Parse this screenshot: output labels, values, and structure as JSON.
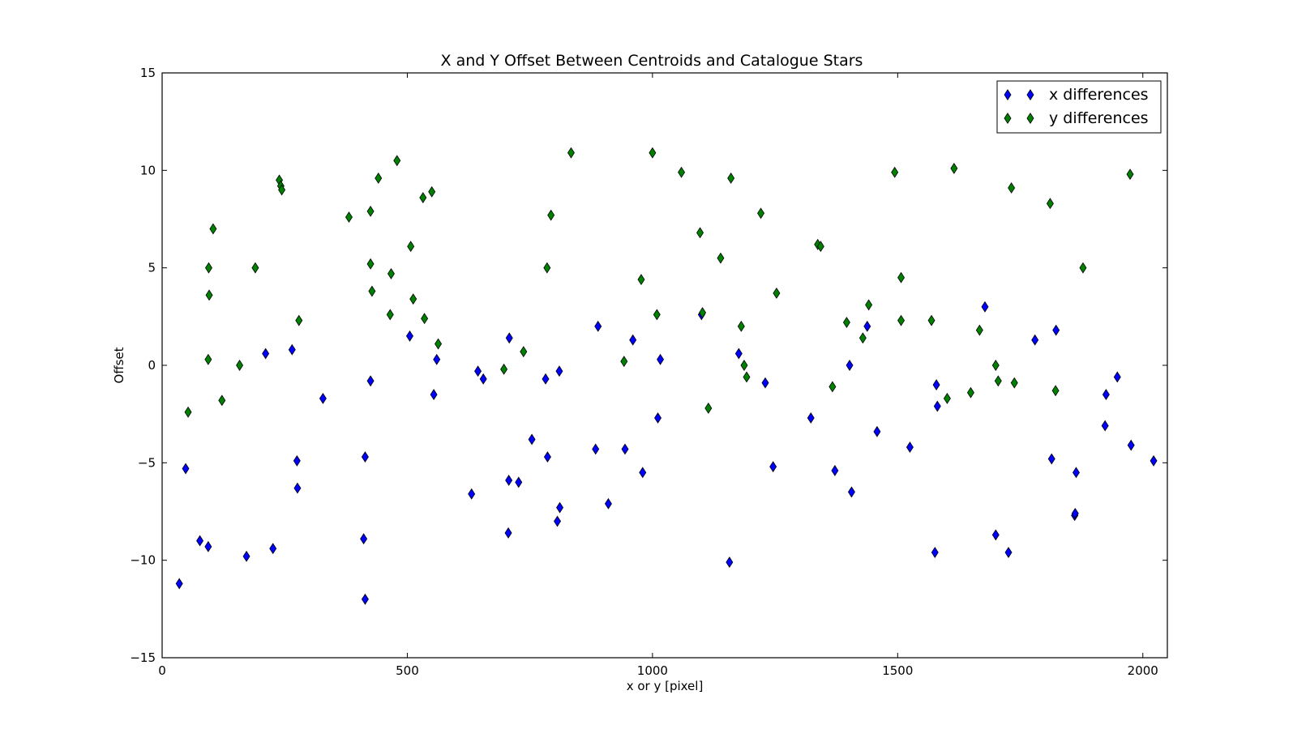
{
  "chart_data": {
    "type": "scatter",
    "title": "X and Y Offset Between Centroids and Catalogue Stars",
    "xlabel": "x or y [pixel]",
    "ylabel": "Offset",
    "xlim": [
      0,
      2050
    ],
    "ylim": [
      -15,
      15
    ],
    "xticks": [
      0,
      500,
      1000,
      1500,
      2000
    ],
    "yticks": [
      -15,
      -10,
      -5,
      0,
      5,
      10,
      15
    ],
    "xtick_labels": [
      "0",
      "500",
      "1000",
      "1500",
      "2000"
    ],
    "ytick_labels": [
      "−15",
      "−10",
      "−5",
      "0",
      "5",
      "10",
      "15"
    ],
    "grid": false,
    "legend": "top-right",
    "marker": "diamond",
    "series": [
      {
        "name": "x differences",
        "color": "#0000ff",
        "points": [
          [
            35,
            -11.2
          ],
          [
            48,
            -5.3
          ],
          [
            77,
            -9.0
          ],
          [
            94,
            -9.3
          ],
          [
            172,
            -9.8
          ],
          [
            211,
            0.6
          ],
          [
            226,
            -9.4
          ],
          [
            265,
            0.8
          ],
          [
            275,
            -4.9
          ],
          [
            276,
            -6.3
          ],
          [
            328,
            -1.7
          ],
          [
            411,
            -8.9
          ],
          [
            414,
            -4.7
          ],
          [
            414,
            -12.0
          ],
          [
            425,
            -0.8
          ],
          [
            505,
            1.5
          ],
          [
            554,
            -1.5
          ],
          [
            560,
            0.3
          ],
          [
            631,
            -6.6
          ],
          [
            644,
            -0.3
          ],
          [
            655,
            -0.7
          ],
          [
            707,
            -5.9
          ],
          [
            708,
            1.4
          ],
          [
            706,
            -8.6
          ],
          [
            727,
            -6.0
          ],
          [
            754,
            -3.8
          ],
          [
            782,
            -0.7
          ],
          [
            786,
            -4.7
          ],
          [
            806,
            -8.0
          ],
          [
            810,
            -0.3
          ],
          [
            811,
            -7.3
          ],
          [
            884,
            -4.3
          ],
          [
            889,
            2.0
          ],
          [
            910,
            -7.1
          ],
          [
            944,
            -4.3
          ],
          [
            960,
            1.3
          ],
          [
            980,
            -5.5
          ],
          [
            1011,
            -2.7
          ],
          [
            1016,
            0.3
          ],
          [
            1100,
            2.6
          ],
          [
            1157,
            -10.1
          ],
          [
            1176,
            0.6
          ],
          [
            1230,
            -0.9
          ],
          [
            1246,
            -5.2
          ],
          [
            1323,
            -2.7
          ],
          [
            1372,
            -5.4
          ],
          [
            1402,
            0.0
          ],
          [
            1406,
            -6.5
          ],
          [
            1438,
            2.0
          ],
          [
            1458,
            -3.4
          ],
          [
            1525,
            -4.2
          ],
          [
            1576,
            -9.6
          ],
          [
            1579,
            -1.0
          ],
          [
            1581,
            -2.1
          ],
          [
            1678,
            3.0
          ],
          [
            1700,
            -8.7
          ],
          [
            1726,
            -9.6
          ],
          [
            1780,
            1.3
          ],
          [
            1814,
            -4.8
          ],
          [
            1823,
            1.8
          ],
          [
            1861,
            -7.7
          ],
          [
            1862,
            -7.6
          ],
          [
            1864,
            -5.5
          ],
          [
            1923,
            -3.1
          ],
          [
            1925,
            -1.5
          ],
          [
            1948,
            -0.6
          ],
          [
            1976,
            -4.1
          ],
          [
            2022,
            -4.9
          ]
        ]
      },
      {
        "name": "y differences",
        "color": "#008000",
        "points": [
          [
            53,
            -2.4
          ],
          [
            95,
            5.0
          ],
          [
            96,
            3.6
          ],
          [
            94,
            0.3
          ],
          [
            104,
            7.0
          ],
          [
            122,
            -1.8
          ],
          [
            158,
            0.0
          ],
          [
            190,
            5.0
          ],
          [
            239,
            9.5
          ],
          [
            242,
            9.2
          ],
          [
            244,
            9.0
          ],
          [
            279,
            2.3
          ],
          [
            381,
            7.6
          ],
          [
            425,
            7.9
          ],
          [
            425,
            5.2
          ],
          [
            428,
            3.8
          ],
          [
            441,
            9.6
          ],
          [
            465,
            2.6
          ],
          [
            467,
            4.7
          ],
          [
            479,
            10.5
          ],
          [
            507,
            6.1
          ],
          [
            512,
            3.4
          ],
          [
            532,
            8.6
          ],
          [
            535,
            2.4
          ],
          [
            550,
            8.9
          ],
          [
            563,
            1.1
          ],
          [
            697,
            -0.2
          ],
          [
            737,
            0.7
          ],
          [
            785,
            5.0
          ],
          [
            793,
            7.7
          ],
          [
            834,
            10.9
          ],
          [
            942,
            0.2
          ],
          [
            977,
            4.4
          ],
          [
            1000,
            10.9
          ],
          [
            1009,
            2.6
          ],
          [
            1059,
            9.9
          ],
          [
            1097,
            6.8
          ],
          [
            1102,
            2.7
          ],
          [
            1114,
            -2.2
          ],
          [
            1139,
            5.5
          ],
          [
            1160,
            9.6
          ],
          [
            1181,
            2.0
          ],
          [
            1187,
            0.0
          ],
          [
            1192,
            -0.6
          ],
          [
            1221,
            7.8
          ],
          [
            1253,
            3.7
          ],
          [
            1337,
            6.2
          ],
          [
            1343,
            6.1
          ],
          [
            1367,
            -1.1
          ],
          [
            1396,
            2.2
          ],
          [
            1429,
            1.4
          ],
          [
            1441,
            3.1
          ],
          [
            1494,
            9.9
          ],
          [
            1507,
            4.5
          ],
          [
            1507,
            2.3
          ],
          [
            1569,
            2.3
          ],
          [
            1601,
            -1.7
          ],
          [
            1615,
            10.1
          ],
          [
            1649,
            -1.4
          ],
          [
            1667,
            1.8
          ],
          [
            1700,
            0.0
          ],
          [
            1705,
            -0.8
          ],
          [
            1732,
            9.1
          ],
          [
            1738,
            -0.9
          ],
          [
            1811,
            8.3
          ],
          [
            1822,
            -1.3
          ],
          [
            1878,
            5.0
          ],
          [
            1974,
            9.8
          ]
        ]
      }
    ]
  }
}
